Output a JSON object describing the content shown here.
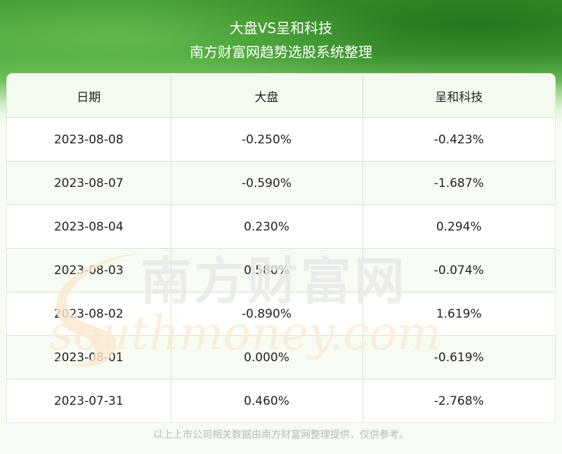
{
  "header": {
    "title": "大盘VS呈和科技",
    "subtitle": "南方财富网趋势选股系统整理"
  },
  "table": {
    "columns": [
      "日期",
      "大盘",
      "呈和科技"
    ],
    "rows": [
      [
        "2023-08-08",
        "-0.250%",
        "-0.423%"
      ],
      [
        "2023-08-07",
        "-0.590%",
        "-1.687%"
      ],
      [
        "2023-08-04",
        "0.230%",
        "0.294%"
      ],
      [
        "2023-08-03",
        "0.580%",
        "-0.074%"
      ],
      [
        "2023-08-02",
        "-0.890%",
        "1.619%"
      ],
      [
        "2023-08-01",
        "0.000%",
        "-0.619%"
      ],
      [
        "2023-07-31",
        "0.460%",
        "-2.768%"
      ]
    ]
  },
  "watermark": {
    "cn": "南方财富网",
    "en": "southmoney.com"
  },
  "footer": {
    "note": "以上上市公司相关数据由南方财富网整理提供，仅供参考。"
  }
}
